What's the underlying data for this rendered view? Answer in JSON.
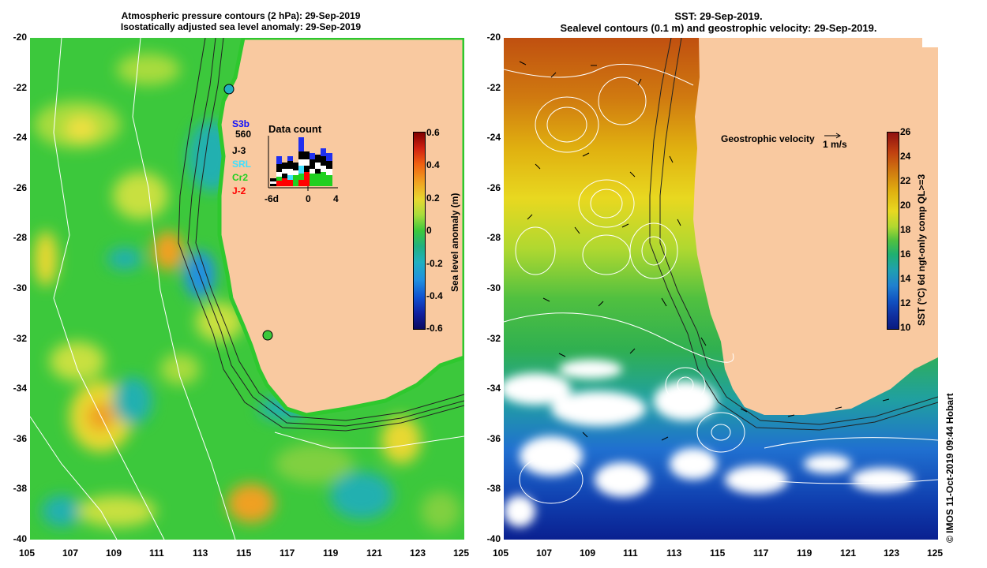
{
  "left_panel": {
    "title_line1": "Atmospheric pressure contours (2 hPa): 29-Sep-2019",
    "title_line2": "Isostatically adjusted sea level anomaly: 29-Sep-2019",
    "colorbar_label": "Sea level anomaly (m)",
    "colorbar_ticks": [
      "0.6",
      "0.4",
      "0.2",
      "0",
      "-0.2",
      "-0.4",
      "-0.6"
    ],
    "data_count_title": "Data count",
    "data_count_axis": [
      "-6d",
      "0",
      "4"
    ],
    "satellites": [
      {
        "label": "S3b",
        "color": "#1010ff"
      },
      {
        "label": "560",
        "color": "#000000"
      },
      {
        "label": "J-3",
        "color": "#000000"
      },
      {
        "label": "SRL",
        "color": "#40e0ff"
      },
      {
        "label": "Cr2",
        "color": "#20d020"
      },
      {
        "label": "J-2",
        "color": "#ff0000"
      }
    ]
  },
  "right_panel": {
    "title_line1": "SST: 29-Sep-2019.",
    "title_line2": "Sealevel contours (0.1 m) and geostrophic velocity: 29-Sep-2019.",
    "colorbar_label": "SST (°C) 6d ngt-only comp QL>=3",
    "colorbar_ticks": [
      "26",
      "24",
      "22",
      "20",
      "18",
      "16",
      "14",
      "12",
      "10"
    ],
    "velocity_label": "Geostrophic velocity",
    "velocity_scale": "1 m/s"
  },
  "axes": {
    "y_ticks": [
      "-20",
      "-22",
      "-24",
      "-26",
      "-28",
      "-30",
      "-32",
      "-34",
      "-36",
      "-38",
      "-40"
    ],
    "x_ticks": [
      "105",
      "107",
      "109",
      "111",
      "113",
      "115",
      "117",
      "119",
      "121",
      "123",
      "125"
    ]
  },
  "credit": "© IMOS 11-Oct-2019 09:44 Hobart",
  "colors": {
    "land": "#f9c9a0",
    "ocean_green": "#3cc83c",
    "sst_warm": "#d06a10",
    "sst_cold": "#1030a0"
  }
}
